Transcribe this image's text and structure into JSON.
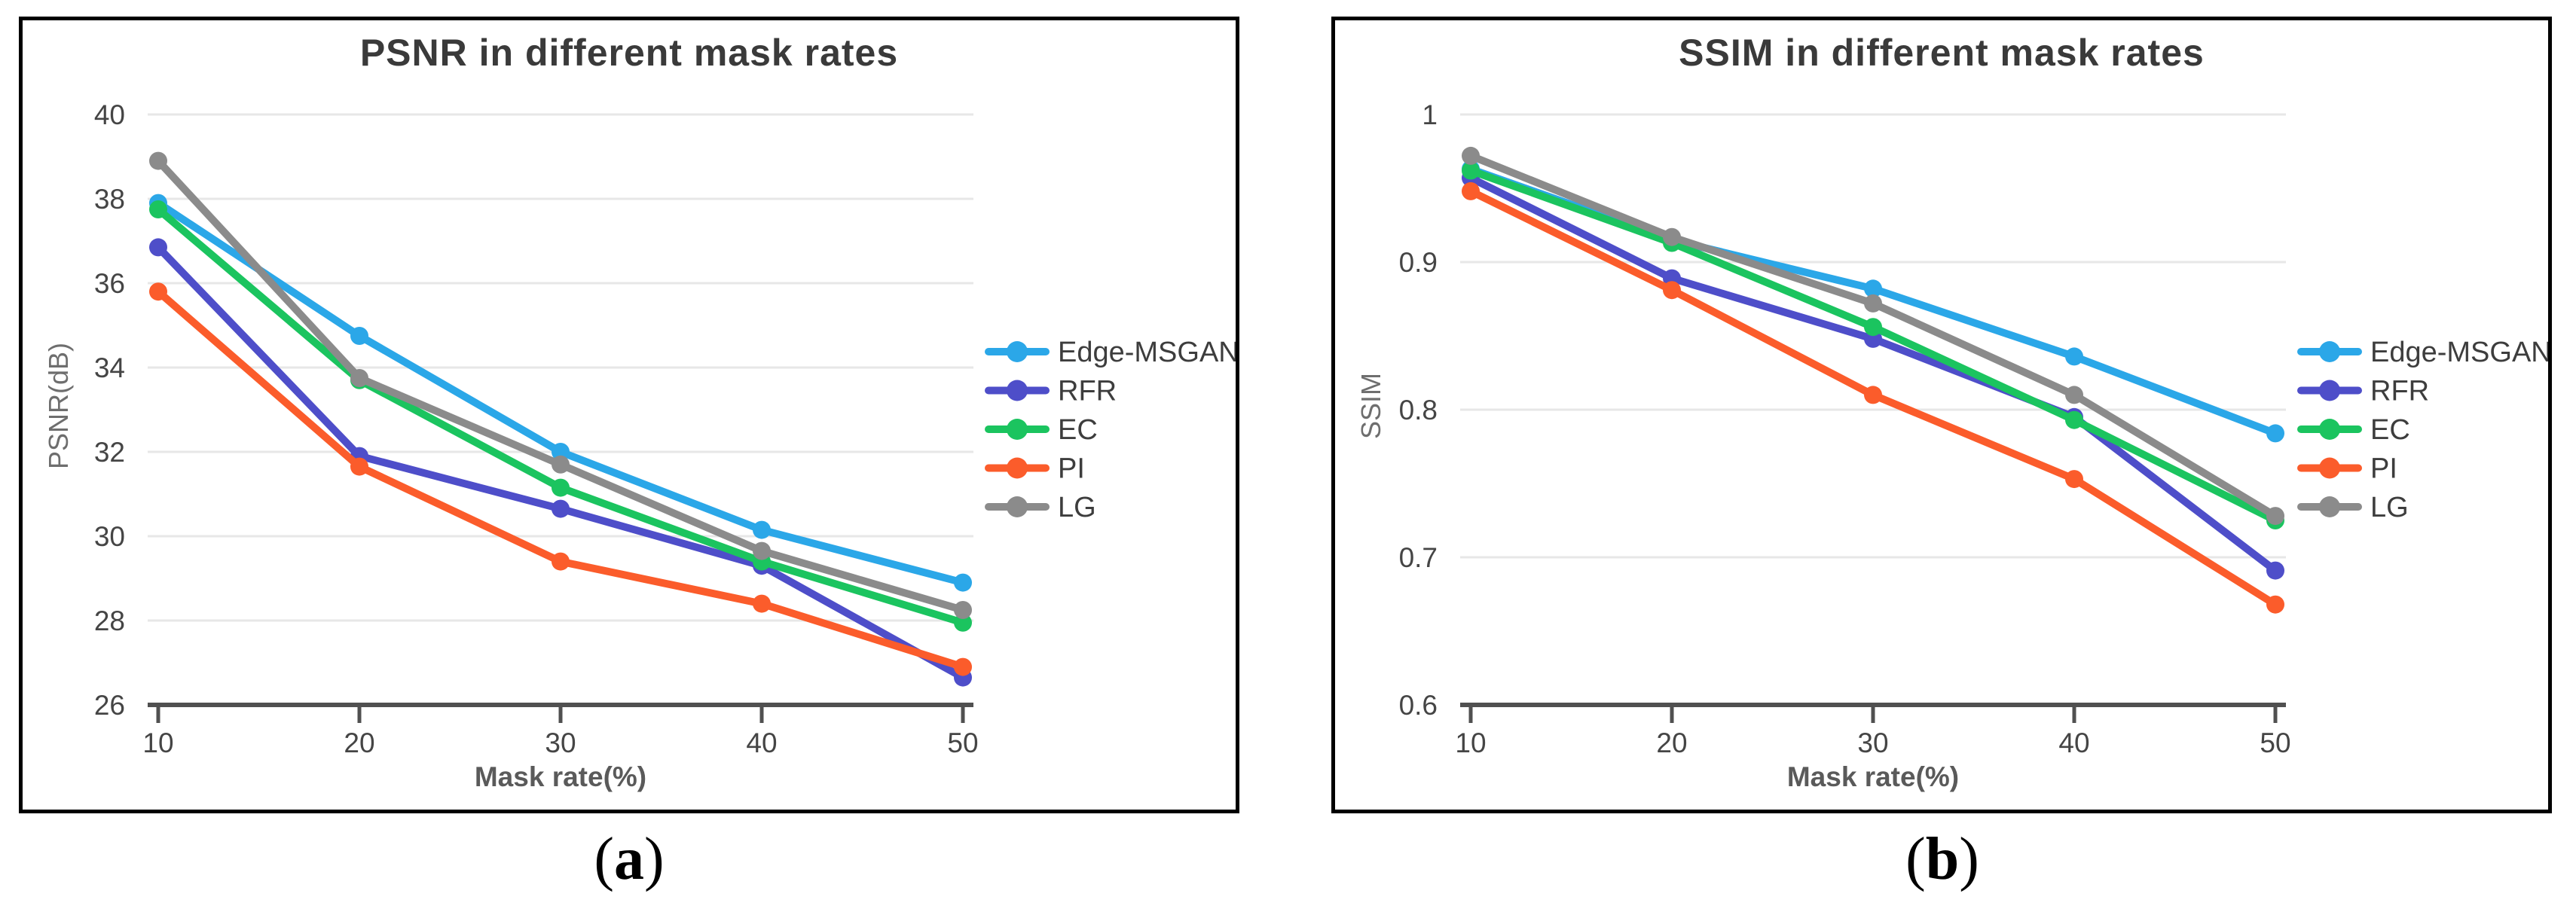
{
  "figure": {
    "caption_a_label": "a",
    "caption_b_label": "b"
  },
  "style": {
    "axis_color": "#505050",
    "grid_color": "#e7e7e7",
    "tick_label_color": "#454545",
    "title_color": "#3a3a3a",
    "axis_title_color": "#5a5a5a",
    "legend_text_color": "#3d3d3d",
    "panel_border_color": "#000000"
  },
  "chart_data": [
    {
      "type": "line",
      "title": "PSNR in different mask rates",
      "xlabel": "Mask rate(%)",
      "ylabel": "PSNR(dB)",
      "x": [
        10,
        20,
        30,
        40,
        50
      ],
      "xtick_labels": [
        "10",
        "20",
        "30",
        "40",
        "50"
      ],
      "ylim": [
        26,
        40
      ],
      "yticks": [
        {
          "v": 40,
          "label": "40"
        },
        {
          "v": 38,
          "label": "38"
        },
        {
          "v": 36,
          "label": "36"
        },
        {
          "v": 34,
          "label": "34"
        },
        {
          "v": 32,
          "label": "32"
        },
        {
          "v": 30,
          "label": "30"
        },
        {
          "v": 28,
          "label": "28"
        },
        {
          "v": 26,
          "label": "26"
        }
      ],
      "grid": true,
      "legend_position": "right",
      "series": [
        {
          "name": "Edge-MSGAN",
          "color": "#2ba7e8",
          "values": [
            37.9,
            34.75,
            32.0,
            30.15,
            28.9
          ]
        },
        {
          "name": "RFR",
          "color": "#4e4ec9",
          "values": [
            36.85,
            31.9,
            30.65,
            29.3,
            26.65
          ]
        },
        {
          "name": "EC",
          "color": "#1bc45f",
          "values": [
            37.75,
            33.7,
            31.15,
            29.4,
            27.95
          ]
        },
        {
          "name": "PI",
          "color": "#fb5c2b",
          "values": [
            35.8,
            31.65,
            29.4,
            28.4,
            26.9
          ]
        },
        {
          "name": "LG",
          "color": "#8b8b8b",
          "values": [
            38.9,
            33.75,
            31.7,
            29.65,
            28.25
          ]
        }
      ]
    },
    {
      "type": "line",
      "title": "SSIM in different mask rates",
      "xlabel": "Mask rate(%)",
      "ylabel": "SSIM",
      "x": [
        10,
        20,
        30,
        40,
        50
      ],
      "xtick_labels": [
        "10",
        "20",
        "30",
        "40",
        "50"
      ],
      "ylim": [
        0.6,
        1.0
      ],
      "yticks": [
        {
          "v": 1.0,
          "label": "1"
        },
        {
          "v": 0.9,
          "label": "0.9"
        },
        {
          "v": 0.8,
          "label": "0.8"
        },
        {
          "v": 0.7,
          "label": "0.7"
        },
        {
          "v": 0.6,
          "label": "0.6"
        }
      ],
      "grid": true,
      "legend_position": "right",
      "series": [
        {
          "name": "Edge-MSGAN",
          "color": "#2ba7e8",
          "values": [
            0.963,
            0.915,
            0.882,
            0.836,
            0.784
          ]
        },
        {
          "name": "RFR",
          "color": "#4e4ec9",
          "values": [
            0.957,
            0.889,
            0.848,
            0.795,
            0.691
          ]
        },
        {
          "name": "EC",
          "color": "#1bc45f",
          "values": [
            0.962,
            0.913,
            0.856,
            0.793,
            0.725
          ]
        },
        {
          "name": "PI",
          "color": "#fb5c2b",
          "values": [
            0.948,
            0.881,
            0.81,
            0.753,
            0.668
          ]
        },
        {
          "name": "LG",
          "color": "#8b8b8b",
          "values": [
            0.972,
            0.917,
            0.872,
            0.81,
            0.728
          ]
        }
      ]
    }
  ]
}
